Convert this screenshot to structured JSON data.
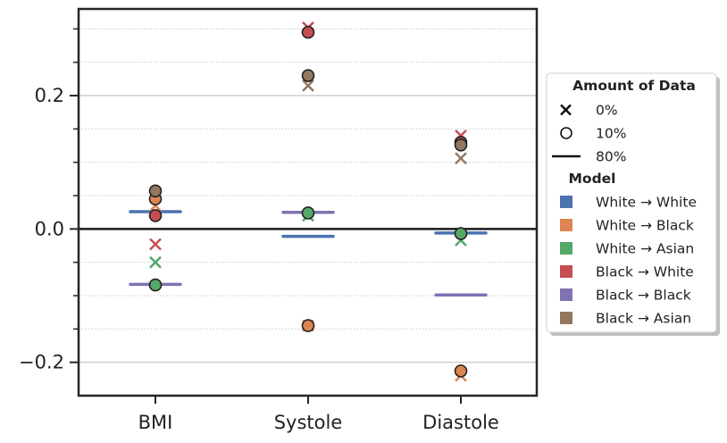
{
  "chart_data": {
    "type": "scatter",
    "title": "",
    "xlabel": "",
    "ylabel": "",
    "categories": [
      "BMI",
      "Systole",
      "Diastole"
    ],
    "ylim": [
      -0.25,
      0.33
    ],
    "y_ticks_major": [
      -0.2,
      0.0,
      0.2
    ],
    "y_tick_labels": [
      "−0.2",
      "0.0",
      "0.2"
    ],
    "y_ticks_minor": [
      -0.15,
      -0.1,
      -0.05,
      0.05,
      0.1,
      0.15,
      0.25,
      0.3
    ],
    "reference_line": 0.0,
    "grid": true,
    "legend_position": "right",
    "colors": {
      "White → White": "#4c72b0",
      "White → Black": "#dd8452",
      "White → Asian": "#55a868",
      "Black → White": "#c44e52",
      "Black → Black": "#8172b3",
      "Black → Asian": "#937860"
    },
    "legend": {
      "amount_title": "Amount of Data",
      "amount_items": [
        {
          "label": "0%",
          "marker": "x"
        },
        {
          "label": "10%",
          "marker": "o"
        },
        {
          "label": "80%",
          "marker": "line"
        }
      ],
      "model_title": "Model",
      "model_items": [
        "White → White",
        "White → Black",
        "White → Asian",
        "Black → White",
        "Black → Black",
        "Black → Asian"
      ]
    },
    "series": [
      {
        "model": "White → White",
        "amount": "0%",
        "marker": "x",
        "values": [
          null,
          null,
          null
        ]
      },
      {
        "model": "White → Black",
        "amount": "0%",
        "marker": "x",
        "values": [
          0.035,
          -0.145,
          -0.22
        ]
      },
      {
        "model": "White → Asian",
        "amount": "0%",
        "marker": "x",
        "values": [
          -0.05,
          0.02,
          -0.017
        ]
      },
      {
        "model": "Black → White",
        "amount": "0%",
        "marker": "x",
        "values": [
          -0.023,
          0.302,
          0.14
        ]
      },
      {
        "model": "Black → Black",
        "amount": "0%",
        "marker": "x",
        "values": [
          null,
          null,
          null
        ]
      },
      {
        "model": "Black → Asian",
        "amount": "0%",
        "marker": "x",
        "values": [
          0.053,
          0.215,
          0.106
        ]
      },
      {
        "model": "White → Black",
        "amount": "10%",
        "marker": "o",
        "values": [
          0.045,
          -0.145,
          -0.213
        ]
      },
      {
        "model": "White → Asian",
        "amount": "10%",
        "marker": "o",
        "values": [
          -0.084,
          0.024,
          -0.007
        ]
      },
      {
        "model": "Black → White",
        "amount": "10%",
        "marker": "o",
        "values": [
          0.02,
          0.295,
          0.13
        ]
      },
      {
        "model": "Black → Asian",
        "amount": "10%",
        "marker": "o",
        "values": [
          0.057,
          0.23,
          0.126
        ]
      },
      {
        "model": "White → White",
        "amount": "80%",
        "marker": "line",
        "values": [
          0.026,
          -0.011,
          -0.006
        ]
      },
      {
        "model": "Black → Black",
        "amount": "80%",
        "marker": "line",
        "values": [
          -0.083,
          0.025,
          -0.099
        ]
      }
    ]
  }
}
